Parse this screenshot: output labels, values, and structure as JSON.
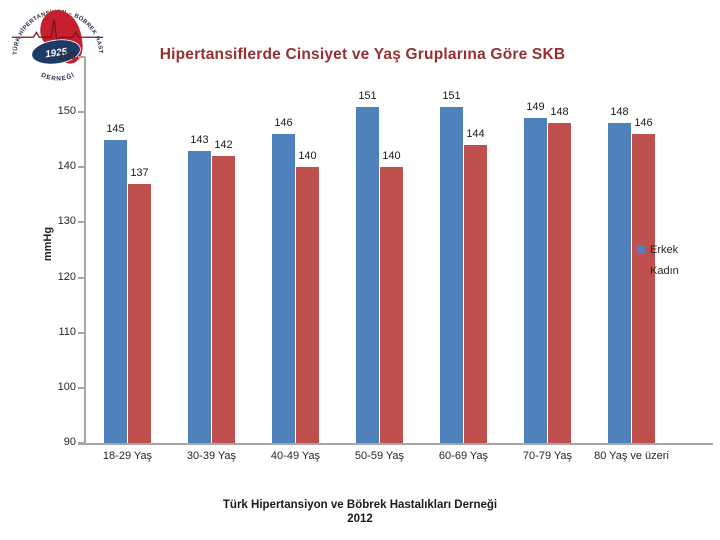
{
  "title": "Hipertansiflerde Cinsiyet ve Yaş Gruplarına Göre SKB",
  "title_color": "#943130",
  "logo": {
    "arc_top_text": "TÜRK HİPERTANSİYON ~ BÖBREK HASTALIKLARI",
    "arc_bottom_text": "DERNEĞİ",
    "year": "1925"
  },
  "footer": {
    "line1": "Türk Hipertansiyon ve Böbrek Hastalıkları Derneği",
    "line2": "2012"
  },
  "chart_data": {
    "type": "bar",
    "title": "Hipertansiflerde Cinsiyet ve Yaş Gruplarına Göre SKB",
    "xlabel": "",
    "ylabel": "mmHg",
    "categories": [
      "18-29 Yaş",
      "30-39 Yaş",
      "40-49 Yaş",
      "50-59 Yaş",
      "60-69 Yaş",
      "70-79 Yaş",
      "80 Yaş ve üzeri"
    ],
    "series": [
      {
        "name": "Erkek",
        "color": "#4F81BD",
        "values": [
          145,
          143,
          146,
          151,
          151,
          149,
          148
        ]
      },
      {
        "name": "Kadın",
        "color": "#C0504D",
        "values": [
          137,
          142,
          140,
          140,
          144,
          148,
          146
        ]
      }
    ],
    "ylim": [
      90,
      160
    ],
    "yticks": [
      90,
      100,
      110,
      120,
      130,
      140,
      150,
      160
    ],
    "grid": false,
    "data_labels": true,
    "legend_position": "right",
    "axis_color": "#A6A6A6"
  }
}
